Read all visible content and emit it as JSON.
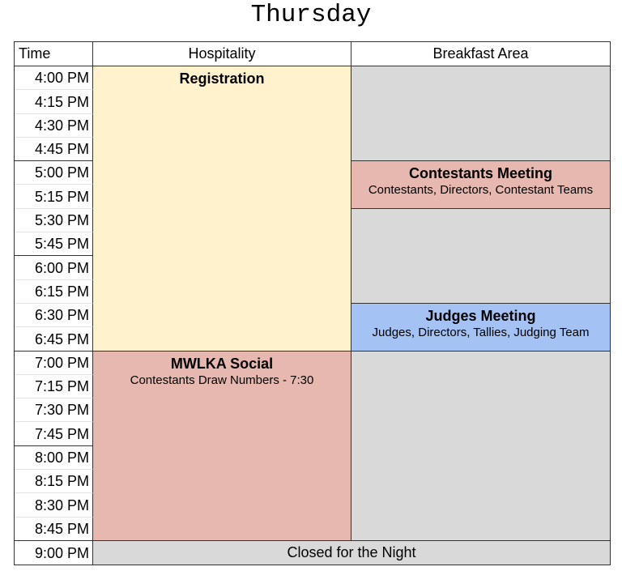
{
  "title": "Thursday",
  "columns": {
    "time": "Time",
    "hospitality": "Hospitality",
    "breakfast": "Breakfast Area"
  },
  "times": [
    "4:00 PM",
    "4:15 PM",
    "4:30 PM",
    "4:45 PM",
    "5:00 PM",
    "5:15 PM",
    "5:30 PM",
    "5:45 PM",
    "6:00 PM",
    "6:15 PM",
    "6:30 PM",
    "6:45 PM",
    "7:00 PM",
    "7:15 PM",
    "7:30 PM",
    "7:45 PM",
    "8:00 PM",
    "8:15 PM",
    "8:30 PM",
    "8:45 PM",
    "9:00 PM"
  ],
  "events": {
    "registration": {
      "name": "Registration",
      "color": "#fff2cc"
    },
    "social": {
      "name": "MWLKA Social",
      "detail": "Contestants Draw Numbers - 7:30",
      "color": "#e6b8af"
    },
    "contestants": {
      "name": "Contestants Meeting",
      "detail": "Contestants, Directors, Contestant Teams",
      "color": "#e6b8af"
    },
    "judges": {
      "name": "Judges Meeting",
      "detail": "Judges, Directors, Tallies, Judging Team",
      "color": "#a4c2f4"
    },
    "closed": {
      "name": "Closed for the Night",
      "color": "#d9d9d9"
    }
  },
  "colors": {
    "empty": "#d9d9d9"
  }
}
